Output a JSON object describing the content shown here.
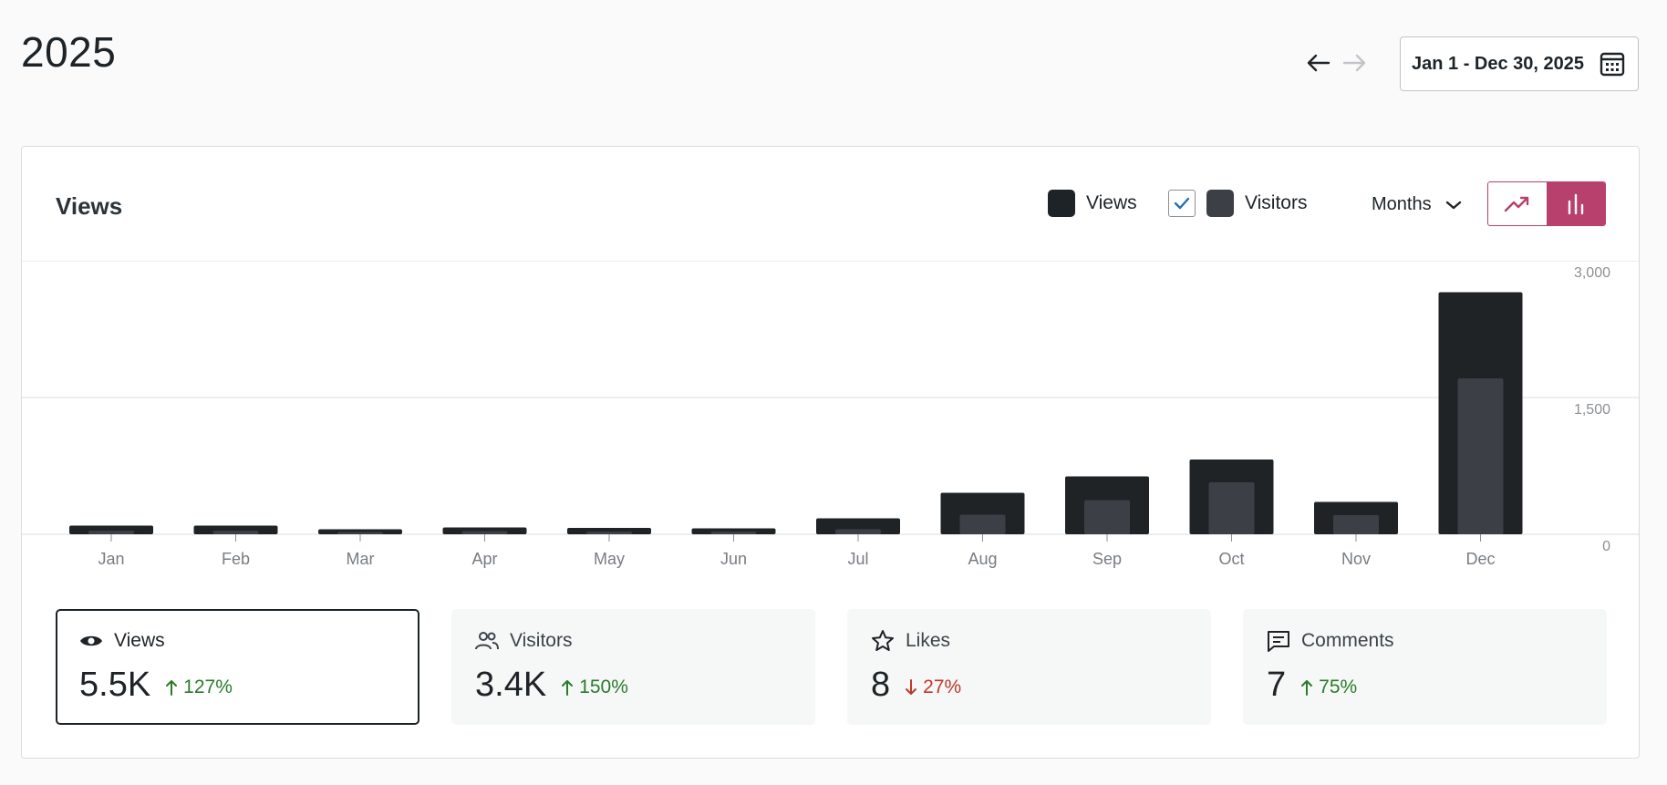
{
  "header": {
    "title": "2025",
    "date_range": "Jan 1 - Dec 30, 2025"
  },
  "card": {
    "title": "Views",
    "legend": [
      {
        "label": "Views",
        "color": "#1d2327"
      },
      {
        "label": "Visitors",
        "color": "#3c3f45",
        "checked": true
      }
    ],
    "period": "Months",
    "chart_modes": [
      "line",
      "bar"
    ],
    "active_chart_mode": "bar"
  },
  "chart_data": {
    "type": "bar",
    "categories": [
      "Jan",
      "Feb",
      "Mar",
      "Apr",
      "May",
      "Jun",
      "Jul",
      "Aug",
      "Sep",
      "Oct",
      "Nov",
      "Dec"
    ],
    "series": [
      {
        "name": "Views",
        "color": "#1f2326",
        "values": [
          95,
          95,
          55,
          75,
          70,
          65,
          175,
          455,
          635,
          820,
          355,
          2655
        ]
      },
      {
        "name": "Visitors",
        "color": "#3c3f45",
        "values": [
          40,
          40,
          25,
          35,
          30,
          30,
          55,
          215,
          375,
          570,
          210,
          1710
        ]
      }
    ],
    "y_ticks": [
      "3,000",
      "1,500",
      "0"
    ],
    "ylim": [
      0,
      3000
    ],
    "grid": true
  },
  "stats": [
    {
      "label": "Views",
      "value": "5.5K",
      "change": "127%",
      "direction": "up",
      "icon": "eye-icon",
      "selected": true
    },
    {
      "label": "Visitors",
      "value": "3.4K",
      "change": "150%",
      "direction": "up",
      "icon": "people-icon",
      "selected": false
    },
    {
      "label": "Likes",
      "value": "8",
      "change": "27%",
      "direction": "down",
      "icon": "star-icon",
      "selected": false
    },
    {
      "label": "Comments",
      "value": "7",
      "change": "75%",
      "direction": "up",
      "icon": "comment-icon",
      "selected": false
    }
  ]
}
